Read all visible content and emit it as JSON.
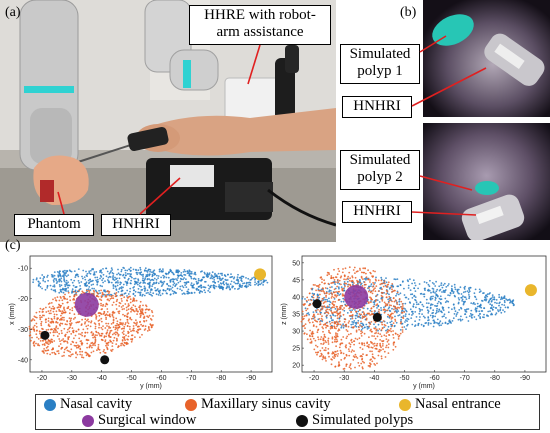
{
  "figure": {
    "panels": {
      "a": "(a)",
      "b": "(b)",
      "c": "(c)"
    },
    "panel_a": {
      "labels": {
        "hhre": "HHRE with robot-arm assistance",
        "phantom": "Phantom",
        "hnhri": "HNHRI"
      }
    },
    "panel_b": {
      "labels": {
        "polyp1": "Simulated polyp 1",
        "hnhri_top": "HNHRI",
        "polyp2": "Simulated polyp 2",
        "hnhri_bottom": "HNHRI"
      }
    },
    "legend": {
      "nasal_cavity": "Nasal cavity",
      "maxillary": "Maxillary sinus cavity",
      "nasal_entrance": "Nasal entrance",
      "surgical_window": "Surgical window",
      "simulated_polyps": "Simulated polyps"
    },
    "colors": {
      "nasal_cavity": "#2a7fc4",
      "maxillary": "#e8632a",
      "nasal_entrance": "#e9b62c",
      "surgical_window": "#8c3aa0",
      "simulated_polyps": "#111111"
    }
  },
  "chart_data": [
    {
      "type": "scatter",
      "xlabel": "y (mm)",
      "ylabel": "x (mm)",
      "xticks": [
        "-20",
        "-30",
        "-40",
        "-50",
        "-60",
        "-70",
        "-80",
        "-90"
      ],
      "yticks": [
        "-10",
        "-20",
        "-30",
        "-40"
      ],
      "series": [
        {
          "name": "Nasal cavity",
          "points": "dense point cloud"
        },
        {
          "name": "Maxillary sinus cavity",
          "points": "dense point cloud"
        },
        {
          "name": "Nasal entrance",
          "x": [
            -93
          ],
          "y": [
            -12
          ]
        },
        {
          "name": "Surgical window",
          "x": [
            -35
          ],
          "y": [
            -22
          ]
        },
        {
          "name": "Simulated polyps",
          "x": [
            -21,
            -41
          ],
          "y": [
            -32,
            -40
          ]
        }
      ]
    },
    {
      "type": "scatter",
      "xlabel": "y (mm)",
      "ylabel": "z (mm)",
      "xticks": [
        "-20",
        "-30",
        "-40",
        "-50",
        "-60",
        "-70",
        "-80",
        "-90"
      ],
      "yticks": [
        "20",
        "25",
        "30",
        "35",
        "40",
        "45",
        "50"
      ],
      "series": [
        {
          "name": "Nasal cavity",
          "points": "dense point cloud"
        },
        {
          "name": "Maxillary sinus cavity",
          "points": "dense point cloud"
        },
        {
          "name": "Nasal entrance",
          "x": [
            -92
          ],
          "y": [
            42
          ]
        },
        {
          "name": "Surgical window",
          "x": [
            -34
          ],
          "y": [
            40
          ]
        },
        {
          "name": "Simulated polyps",
          "x": [
            -21,
            -41
          ],
          "y": [
            38,
            34
          ]
        }
      ]
    }
  ]
}
